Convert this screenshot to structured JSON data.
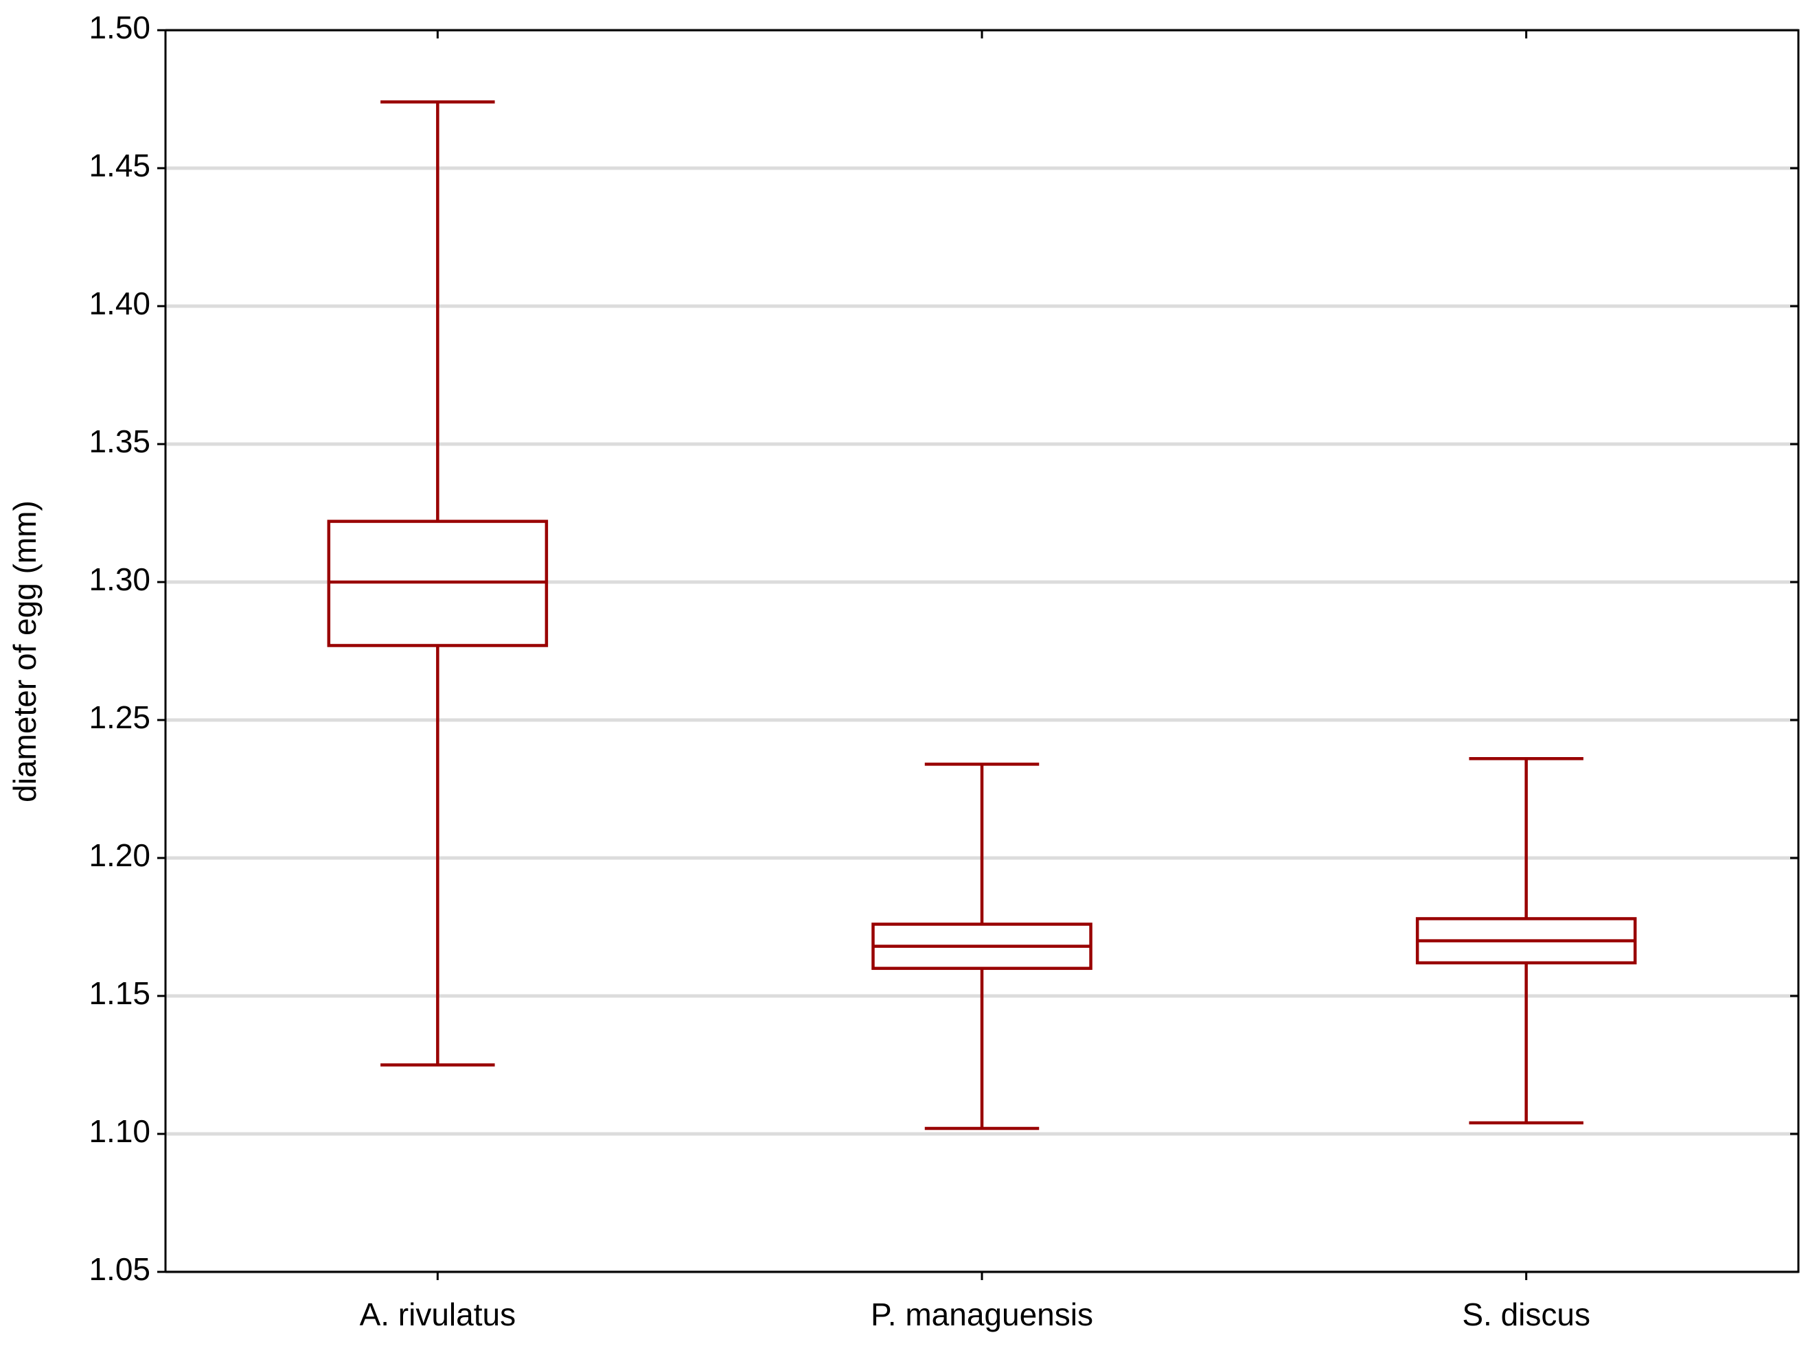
{
  "chart_data": {
    "type": "box",
    "y_label": "diameter of egg (mm)",
    "categories": [
      "A. rivulatus",
      "P. managuensis",
      "S. discus"
    ],
    "min": [
      1.125,
      1.102,
      1.104
    ],
    "q1": [
      1.277,
      1.16,
      1.162
    ],
    "median": [
      1.3,
      1.168,
      1.17
    ],
    "q3": [
      1.322,
      1.176,
      1.178
    ],
    "max": [
      1.474,
      1.234,
      1.236
    ],
    "color": "#990000",
    "ylim": [
      1.05,
      1.5
    ],
    "yticks": [
      1.05,
      {
        "value": 1.1,
        "label": "1.10"
      },
      1.15,
      {
        "value": 1.2,
        "label": "1.20"
      },
      1.25,
      {
        "value": 1.3,
        "label": "1.30"
      },
      1.35,
      {
        "value": 1.4,
        "label": "1.40"
      },
      1.45,
      {
        "value": 1.5,
        "label": "1.50"
      }
    ],
    "grid": true
  }
}
